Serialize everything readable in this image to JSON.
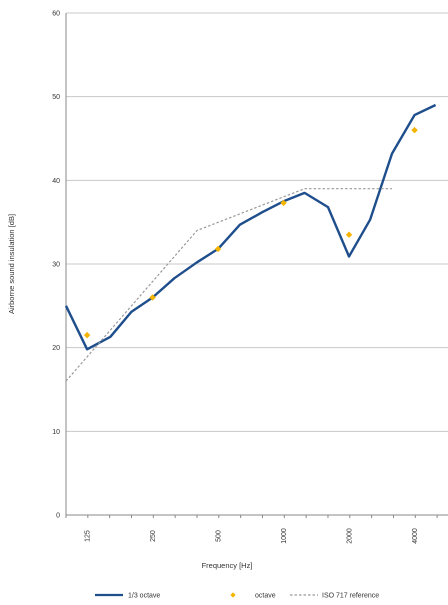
{
  "chart_data": {
    "type": "line",
    "xlabel": "Frequency [Hz]",
    "ylabel": "Airborne sound insulation [dB]",
    "ylim": [
      0,
      60
    ],
    "yticks": [
      "0",
      "10",
      "20",
      "30",
      "40",
      "50",
      "60"
    ],
    "x_tick_labels": [
      "125",
      "250",
      "500",
      "1000",
      "2000",
      "4000"
    ],
    "x_scale": "log (1/3-octave bands)",
    "grid": "horizontal",
    "series": [
      {
        "name": "1/3 octave",
        "style": "solid",
        "color": "#1f4e8c",
        "x": [
          100,
          125,
          160,
          200,
          250,
          315,
          400,
          500,
          630,
          800,
          1000,
          1250,
          1600,
          2000,
          2500,
          3150,
          4000,
          5000
        ],
        "values": [
          25.0,
          19.8,
          21.3,
          24.3,
          26.0,
          28.3,
          30.2,
          31.8,
          34.7,
          36.2,
          37.5,
          38.5,
          36.8,
          30.9,
          35.3,
          43.2,
          47.8,
          49.0
        ]
      },
      {
        "name": "octave",
        "style": "markers",
        "color": "#f5b400",
        "x": [
          125,
          250,
          500,
          1000,
          2000,
          4000
        ],
        "values": [
          21.5,
          26.0,
          31.8,
          37.3,
          33.5,
          46.0
        ]
      },
      {
        "name": "ISO 717 reference",
        "style": "dotted",
        "color": "#999999",
        "x": [
          100,
          400,
          1250,
          3150
        ],
        "values": [
          16.0,
          34.0,
          39.0,
          39.0
        ]
      }
    ],
    "legend": {
      "position": "bottom"
    }
  }
}
